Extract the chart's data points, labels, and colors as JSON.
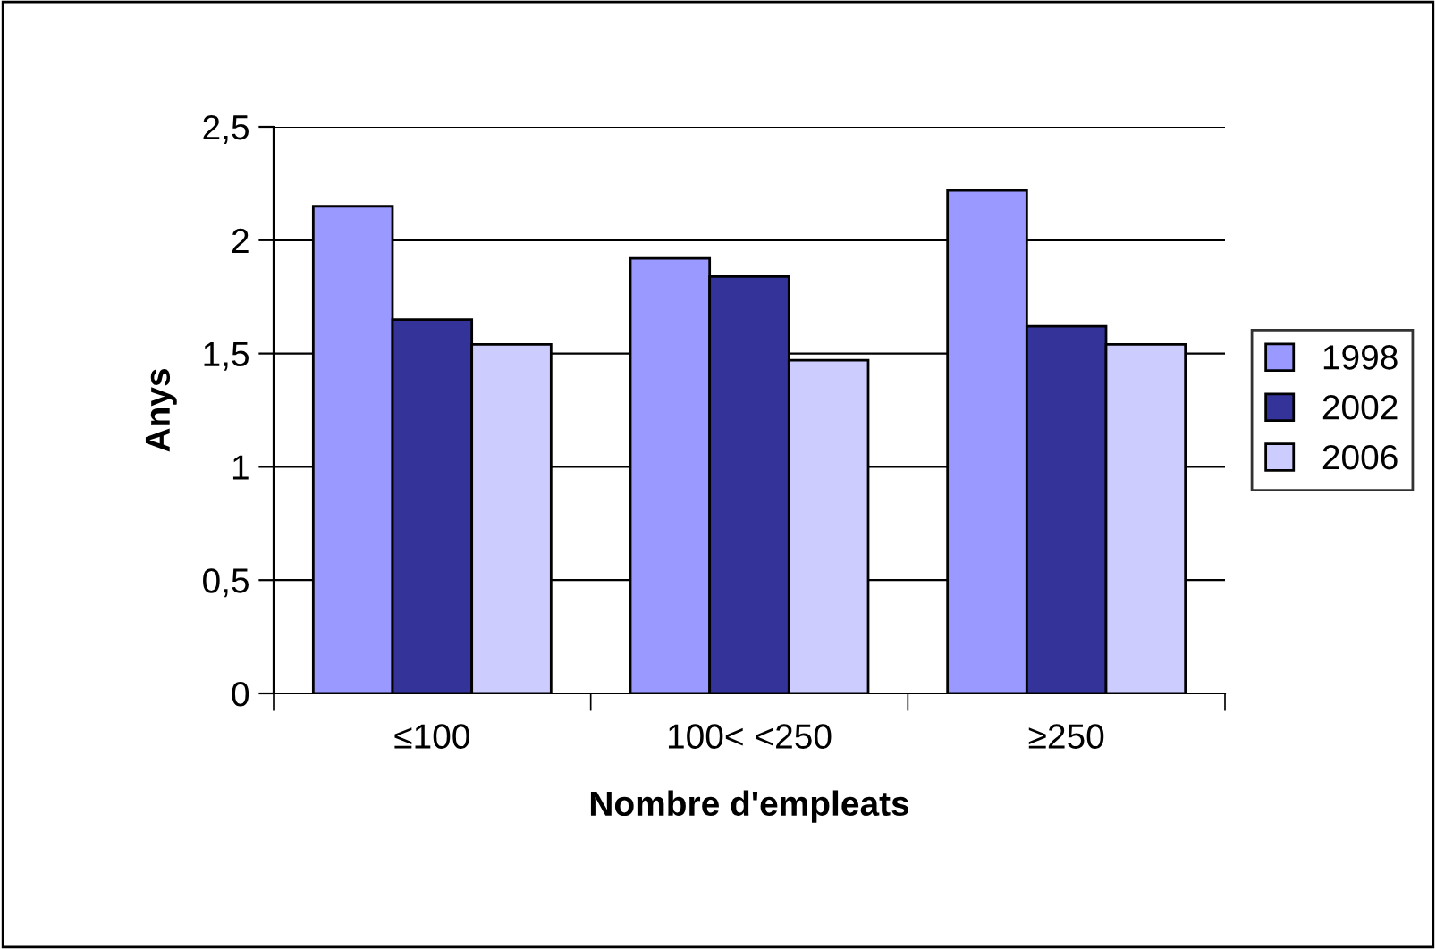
{
  "chart_data": {
    "type": "bar",
    "xlabel": "Nombre d'empleats",
    "ylabel": "Anys",
    "categories": [
      "≤100",
      "100< <250",
      "≥250"
    ],
    "series": [
      {
        "name": "1998",
        "color": "#9999ff",
        "values": [
          2.15,
          1.92,
          2.22
        ]
      },
      {
        "name": "2002",
        "color": "#333399",
        "values": [
          1.65,
          1.84,
          1.62
        ]
      },
      {
        "name": "2006",
        "color": "#ccccff",
        "values": [
          1.54,
          1.47,
          1.54
        ]
      }
    ],
    "ylim": [
      0,
      2.5
    ],
    "yticks": [
      0,
      {
        "value": 0.5,
        "label": "0,5"
      },
      1,
      {
        "value": 1.5,
        "label": "1,5"
      },
      2,
      {
        "value": 2.5,
        "label": "2,5"
      }
    ],
    "grid": "y",
    "legend": "right"
  }
}
